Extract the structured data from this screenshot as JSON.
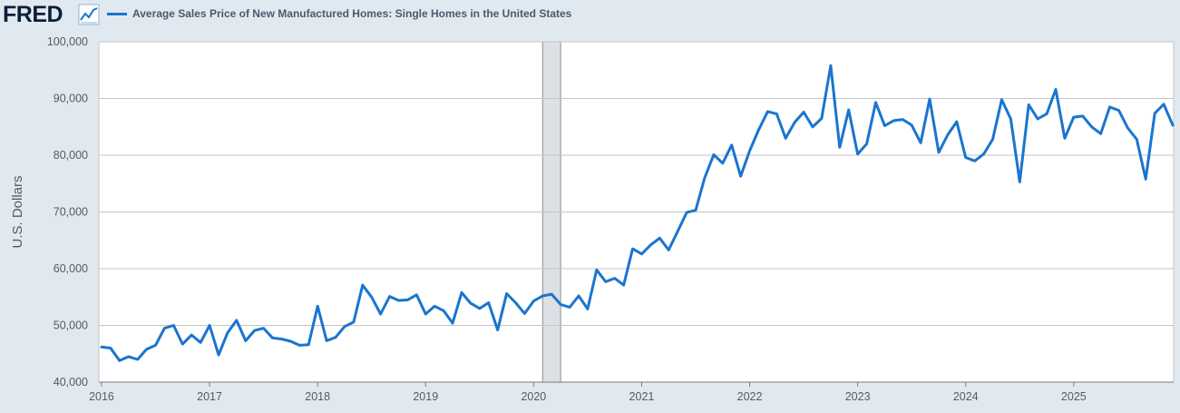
{
  "header": {
    "logo_text": "FRED",
    "legend_label": "Average Sales Price of New Manufactured Homes: Single Homes in the United States"
  },
  "colors": {
    "series": "#1a75cf",
    "plot_background": "#ffffff",
    "page_background": "#e1e9f0",
    "grid": "#c5c5c5",
    "recession": "#dde0e5"
  },
  "chart_data": {
    "type": "line",
    "title": "",
    "xlabel": "",
    "ylabel": "U.S. Dollars",
    "ylim": [
      40000,
      100000
    ],
    "yticks": [
      40000,
      50000,
      60000,
      70000,
      80000,
      90000,
      100000
    ],
    "ytick_labels": [
      "40,000",
      "50,000",
      "60,000",
      "70,000",
      "80,000",
      "90,000",
      "100,000"
    ],
    "xticks": [
      "2016",
      "2017",
      "2018",
      "2019",
      "2020",
      "2021",
      "2022",
      "2023",
      "2024",
      "2025"
    ],
    "x_start": "2016-01",
    "x_end": "2025-12",
    "grid": true,
    "legend_position": "top-left",
    "recession_shading": {
      "start": "2020-02",
      "end": "2020-04"
    },
    "series": [
      {
        "name": "Average Sales Price of New Manufactured Homes: Single Homes in the United States",
        "x": [
          "2016-01",
          "2016-02",
          "2016-03",
          "2016-04",
          "2016-05",
          "2016-06",
          "2016-07",
          "2016-08",
          "2016-09",
          "2016-10",
          "2016-11",
          "2016-12",
          "2017-01",
          "2017-02",
          "2017-03",
          "2017-04",
          "2017-05",
          "2017-06",
          "2017-07",
          "2017-08",
          "2017-09",
          "2017-10",
          "2017-11",
          "2017-12",
          "2018-01",
          "2018-02",
          "2018-03",
          "2018-04",
          "2018-05",
          "2018-06",
          "2018-07",
          "2018-08",
          "2018-09",
          "2018-10",
          "2018-11",
          "2018-12",
          "2019-01",
          "2019-02",
          "2019-03",
          "2019-04",
          "2019-05",
          "2019-06",
          "2019-07",
          "2019-08",
          "2019-09",
          "2019-10",
          "2019-11",
          "2019-12",
          "2020-01",
          "2020-02",
          "2020-03",
          "2020-04",
          "2020-05",
          "2020-06",
          "2020-07",
          "2020-08",
          "2020-09",
          "2020-10",
          "2020-11",
          "2020-12",
          "2021-01",
          "2021-02",
          "2021-03",
          "2021-04",
          "2021-05",
          "2021-06",
          "2021-07",
          "2021-08",
          "2021-09",
          "2021-10",
          "2021-11",
          "2021-12",
          "2022-01",
          "2022-02",
          "2022-03",
          "2022-04",
          "2022-05",
          "2022-06",
          "2022-07",
          "2022-08",
          "2022-09",
          "2022-10",
          "2022-11",
          "2022-12",
          "2023-01",
          "2023-02",
          "2023-03",
          "2023-04",
          "2023-05",
          "2023-06",
          "2023-07",
          "2023-08",
          "2023-09",
          "2023-10",
          "2023-11",
          "2023-12",
          "2024-01",
          "2024-02",
          "2024-03",
          "2024-04",
          "2024-05",
          "2024-06",
          "2024-07",
          "2024-08",
          "2024-09",
          "2024-10",
          "2024-11",
          "2024-12",
          "2025-01",
          "2025-02",
          "2025-03",
          "2025-04",
          "2025-05",
          "2025-06",
          "2025-07",
          "2025-08",
          "2025-09",
          "2025-10",
          "2025-11",
          "2025-12"
        ],
        "values": [
          46200,
          46000,
          43800,
          44500,
          44000,
          45800,
          46500,
          49500,
          50000,
          46700,
          48300,
          47000,
          50000,
          44800,
          48700,
          50900,
          47300,
          49100,
          49500,
          47800,
          47600,
          47200,
          46500,
          46600,
          53400,
          47300,
          47900,
          49800,
          50600,
          57100,
          55000,
          52000,
          55100,
          54400,
          54500,
          55400,
          52000,
          53400,
          52600,
          50400,
          55800,
          53900,
          53000,
          54000,
          49200,
          55600,
          54000,
          52100,
          54300,
          55200,
          55500,
          53700,
          53200,
          55200,
          52900,
          59800,
          57700,
          58300,
          57100,
          63500,
          62600,
          64200,
          65400,
          63300,
          66600,
          69900,
          70300,
          76000,
          80100,
          78600,
          81800,
          76300,
          80800,
          84500,
          87700,
          87300,
          83000,
          85800,
          87600,
          85000,
          86500,
          95800,
          81400,
          88000,
          80200,
          82000,
          89300,
          85200,
          86100,
          86300,
          85300,
          82200,
          89900,
          80500,
          83600,
          85900,
          79600,
          79000,
          80200,
          82800,
          89800,
          86400,
          75300,
          88900,
          86400,
          87300,
          91600,
          83000,
          86700,
          86900,
          85000,
          83800,
          88500,
          87900,
          84800,
          82800,
          75800,
          87400,
          89000,
          85300
        ]
      }
    ]
  }
}
